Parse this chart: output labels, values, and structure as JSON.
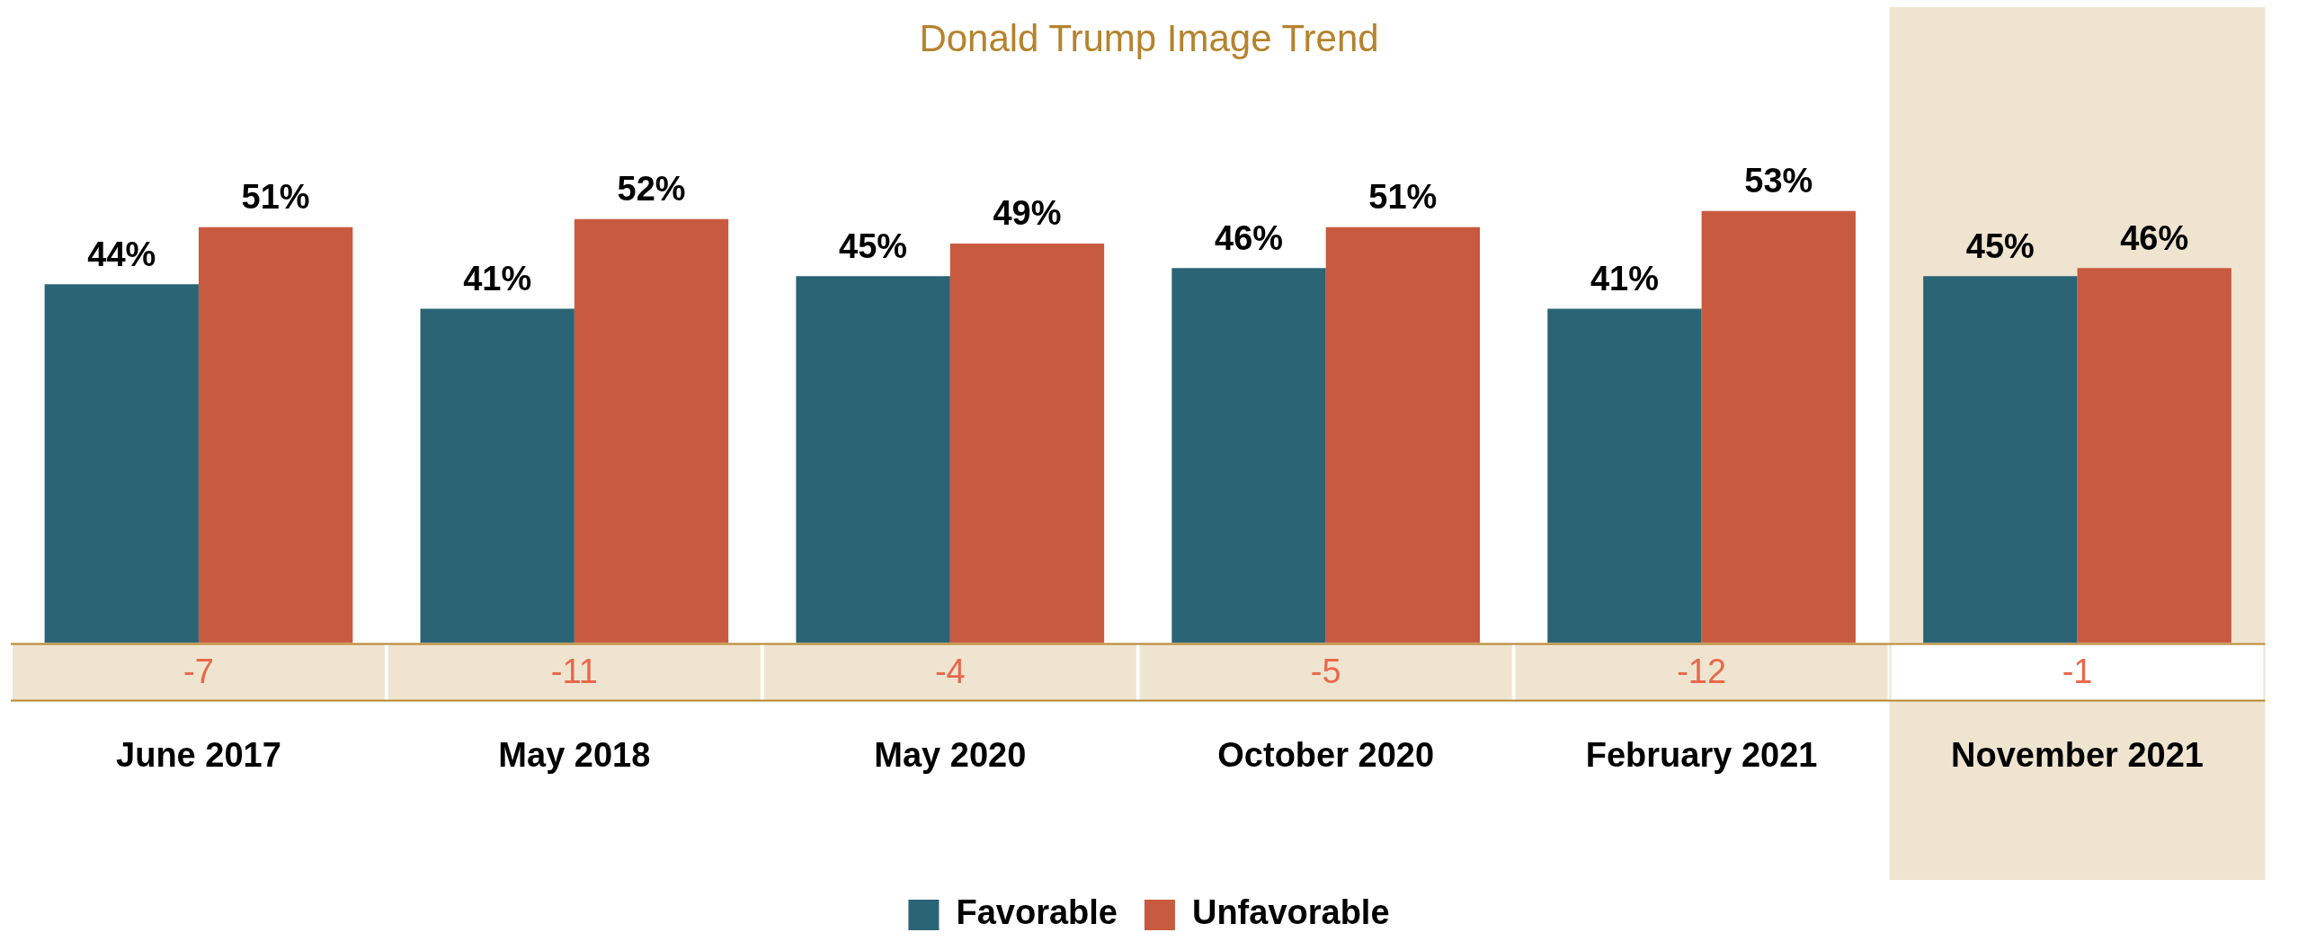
{
  "chart_data": {
    "type": "bar",
    "title": "Donald Trump Image Trend",
    "categories": [
      "June 2017",
      "May 2018",
      "May 2020",
      "October 2020",
      "February 2021",
      "November 2021"
    ],
    "series": [
      {
        "name": "Favorable",
        "color": "#2b6475",
        "values": [
          44,
          41,
          45,
          46,
          41,
          45
        ],
        "value_labels": [
          "44%",
          "41%",
          "45%",
          "46%",
          "41%",
          "45%"
        ]
      },
      {
        "name": "Unfavorable",
        "color": "#c85a40",
        "values": [
          51,
          52,
          49,
          51,
          53,
          46
        ],
        "value_labels": [
          "51%",
          "52%",
          "49%",
          "51%",
          "53%",
          "46%"
        ]
      }
    ],
    "annotations": [
      "-7",
      "-11",
      "-4",
      "-5",
      "-12",
      "-1"
    ],
    "bands": [
      {
        "axis": "x",
        "from": "November 2021",
        "to": "November 2021",
        "color": "#efe4d0"
      }
    ],
    "legend": "bottom"
  }
}
